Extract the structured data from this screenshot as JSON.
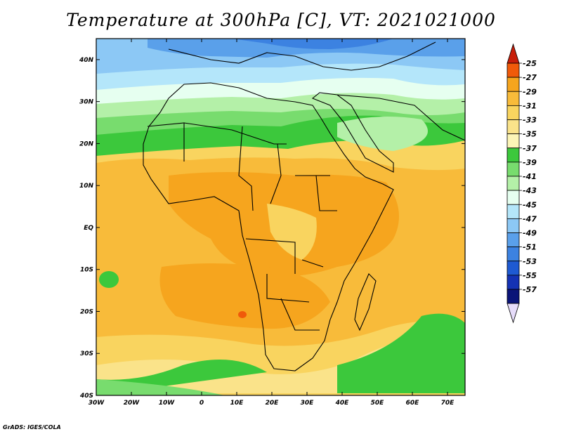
{
  "title": "Temperature at 300hPa [C], VT: 2021021000",
  "credit": "GrADS: IGES/COLA",
  "map": {
    "lat_labels": [
      "40N",
      "30N",
      "20N",
      "10N",
      "EQ",
      "10S",
      "20S",
      "30S",
      "40S"
    ],
    "lon_labels": [
      "30W",
      "20W",
      "10W",
      "0",
      "10E",
      "20E",
      "30E",
      "40E",
      "50E",
      "60E",
      "70E"
    ],
    "lat_range": [
      -40,
      45
    ],
    "lon_range": [
      -30,
      75
    ]
  },
  "colorbar": {
    "labels": [
      "-25",
      "-27",
      "-29",
      "-31",
      "-33",
      "-35",
      "-37",
      "-39",
      "-41",
      "-43",
      "-45",
      "-47",
      "-49",
      "-51",
      "-53",
      "-55",
      "-57"
    ],
    "colors": [
      "#c81e0a",
      "#f05a0a",
      "#f6a51e",
      "#f8bb3a",
      "#f9d45f",
      "#fae38a",
      "#fcf5b7",
      "#3cc83c",
      "#78dc6e",
      "#b4f0a8",
      "#e6fff0",
      "#b4e6fa",
      "#8cc8f5",
      "#5aa0ea",
      "#3c82e1",
      "#1e5ad2",
      "#1432b4",
      "#0a1478",
      "#e6dcfa"
    ]
  }
}
